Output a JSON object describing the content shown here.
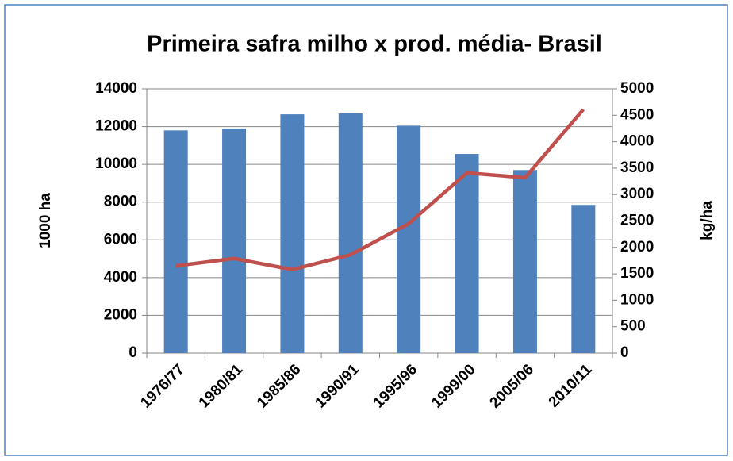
{
  "chart_data": {
    "type": "bar_line",
    "title": "Primeira safra milho x prod. média- Brasil",
    "ylabel": "1000 ha",
    "y2label": "kg/ha",
    "categories": [
      "1976/77",
      "1980/81",
      "1985/86",
      "1990/91",
      "1995/96",
      "1999/00",
      "2005/06",
      "2010/11"
    ],
    "series": [
      {
        "type": "bar",
        "color": "#4f81bd",
        "values": [
          11800,
          11900,
          12650,
          12700,
          12050,
          10550,
          9700,
          7850
        ]
      },
      {
        "type": "line",
        "axis": "y2",
        "color": "#c0504d",
        "values": [
          1650,
          1790,
          1580,
          1860,
          2450,
          3410,
          3320,
          4610
        ]
      }
    ],
    "ylim": [
      0,
      14000
    ],
    "yticks": [
      0,
      2000,
      4000,
      6000,
      8000,
      10000,
      12000,
      14000
    ],
    "y2lim": [
      0,
      5000
    ],
    "y2ticks": [
      0,
      500,
      1000,
      1500,
      2000,
      2500,
      3000,
      3500,
      4000,
      4500,
      5000
    ],
    "grid": true
  }
}
